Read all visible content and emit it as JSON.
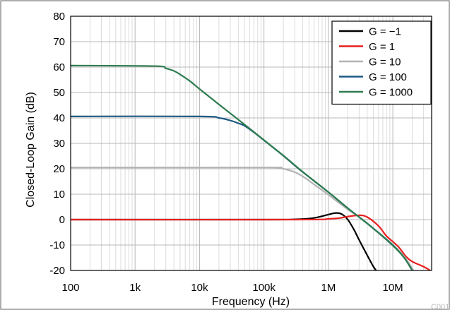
{
  "chart_data": {
    "type": "line",
    "xscale": "log",
    "xlim": [
      100,
      40000000
    ],
    "ylim": [
      -20,
      80
    ],
    "xlabel": "Frequency (Hz)",
    "ylabel": "Closed-Loop Gain (dB)",
    "xticks": [
      {
        "value": 100,
        "label": "100"
      },
      {
        "value": 1000,
        "label": "1k"
      },
      {
        "value": 10000,
        "label": "10k"
      },
      {
        "value": 100000,
        "label": "100k"
      },
      {
        "value": 1000000,
        "label": "1M"
      },
      {
        "value": 10000000,
        "label": "10M"
      }
    ],
    "yticks": [
      -20,
      -10,
      0,
      10,
      20,
      30,
      40,
      50,
      60,
      70,
      80
    ],
    "grid": true,
    "legend_position": "top-right",
    "watermark": "C001",
    "series": [
      {
        "name": "G = −1",
        "color": "#000000",
        "points": [
          [
            100,
            0
          ],
          [
            100000,
            0
          ],
          [
            300000,
            0.1
          ],
          [
            500000,
            0.4
          ],
          [
            700000,
            1.0
          ],
          [
            1000000,
            2.0
          ],
          [
            1300000,
            2.6
          ],
          [
            1600000,
            2.2
          ],
          [
            2000000,
            0
          ],
          [
            2500000,
            -4
          ],
          [
            3000000,
            -8
          ],
          [
            4000000,
            -14
          ],
          [
            5000000,
            -18.5
          ],
          [
            5500000,
            -20
          ]
        ]
      },
      {
        "name": "G = 1",
        "color": "#e8201f",
        "points": [
          [
            100,
            0
          ],
          [
            300000,
            0
          ],
          [
            1000000,
            0.3
          ],
          [
            1500000,
            0.6
          ],
          [
            2000000,
            1.2
          ],
          [
            3000000,
            1.7
          ],
          [
            4000000,
            1.0
          ],
          [
            6000000,
            -2.5
          ],
          [
            8000000,
            -6.5
          ],
          [
            12000000,
            -10.5
          ],
          [
            16000000,
            -14.5
          ],
          [
            20000000,
            -16.5
          ],
          [
            30000000,
            -18.5
          ],
          [
            38000000,
            -20
          ]
        ]
      },
      {
        "name": "G = 10",
        "color": "#b3b3b3",
        "points": [
          [
            100,
            20.5
          ],
          [
            100000,
            20.5
          ],
          [
            150000,
            20.4
          ],
          [
            200000,
            20.0
          ],
          [
            300000,
            18.7
          ],
          [
            400000,
            17.0
          ],
          [
            500000,
            15.3
          ],
          [
            700000,
            12.6
          ],
          [
            1000000,
            9.8
          ],
          [
            2000000,
            4.0
          ],
          [
            3000000,
            1.0
          ],
          [
            5000000,
            -3.5
          ],
          [
            10000000,
            -10.0
          ],
          [
            15000000,
            -14.5
          ],
          [
            21000000,
            -20
          ]
        ]
      },
      {
        "name": "G = 100",
        "color": "#1f5a85",
        "points": [
          [
            100,
            40.6
          ],
          [
            10000,
            40.6
          ],
          [
            20000,
            40.0
          ],
          [
            30000,
            39.0
          ],
          [
            40000,
            37.9
          ],
          [
            50000,
            36.9
          ],
          [
            70000,
            34.3
          ],
          [
            100000,
            31.2
          ],
          [
            200000,
            25.1
          ],
          [
            400000,
            18.7
          ],
          [
            1000000,
            10.8
          ],
          [
            2000000,
            4.5
          ],
          [
            3000000,
            1.0
          ],
          [
            5000000,
            -3.5
          ],
          [
            10000000,
            -10.0
          ],
          [
            15000000,
            -15.0
          ],
          [
            20000000,
            -20
          ]
        ]
      },
      {
        "name": "G = 1000",
        "color": "#2e7d4f",
        "points": [
          [
            100,
            60.6
          ],
          [
            2000,
            60.4
          ],
          [
            3000,
            59.5
          ],
          [
            4000,
            58.5
          ],
          [
            5000,
            57.1
          ],
          [
            7000,
            54.6
          ],
          [
            10000,
            51.4
          ],
          [
            20000,
            45.3
          ],
          [
            50000,
            37.4
          ],
          [
            100000,
            31.3
          ],
          [
            200000,
            25.2
          ],
          [
            400000,
            18.8
          ],
          [
            1000000,
            10.8
          ],
          [
            2000000,
            4.5
          ],
          [
            3000000,
            1.0
          ],
          [
            5000000,
            -3.5
          ],
          [
            10000000,
            -10.2
          ],
          [
            15000000,
            -15.0
          ],
          [
            20000000,
            -20
          ]
        ]
      }
    ]
  }
}
